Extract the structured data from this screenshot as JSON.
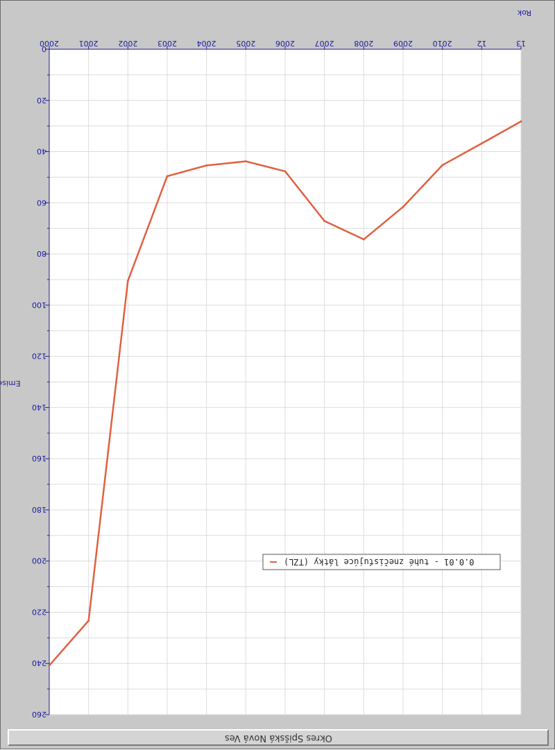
{
  "chart_data": {
    "type": "line",
    "orientation": "rotated-180",
    "xlabel": "Rok",
    "ylabel": "Emise",
    "x_tick_labels": [
      "2000",
      "2001",
      "2002",
      "2003",
      "2004",
      "2005",
      "2006",
      "2007",
      "2008",
      "2009",
      "2010",
      "12",
      "13"
    ],
    "y_ticks": [
      0,
      20,
      40,
      60,
      80,
      100,
      120,
      140,
      160,
      180,
      200,
      220,
      240,
      260
    ],
    "ylim": [
      0,
      260
    ],
    "grid": true,
    "legend_position": "bottom-right",
    "series": [
      {
        "name": "0.0.01 - tuhé znečisťujúce látky (TZL)",
        "color": "#e06040",
        "values": [
          240.8,
          223.3,
          90.5,
          49.6,
          45.4,
          43.8,
          47.7,
          67.1,
          74.3,
          61.6,
          45.3,
          36.8,
          28.2
        ]
      }
    ],
    "caption": "Okres Spišská Nová Ves"
  }
}
